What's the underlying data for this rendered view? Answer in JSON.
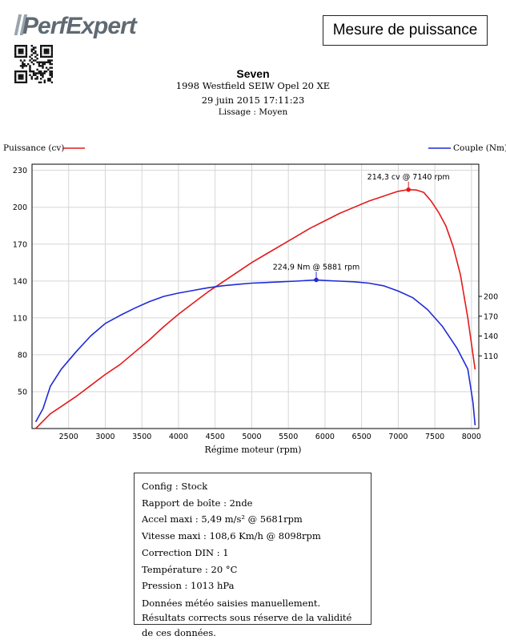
{
  "brand": {
    "logo_text": "PerfExpert"
  },
  "report": {
    "title": "Mesure de puissance",
    "name": "Seven",
    "vehicle": "1998 Westfield SEIW Opel 20 XE",
    "datetime": "29 juin 2015 17:11:23",
    "smoothing": "Lissage : Moyen"
  },
  "chart_data": {
    "type": "line",
    "xlabel": "Régime moteur (rpm)",
    "xlim": [
      2000,
      8100
    ],
    "xticks": [
      2500,
      3000,
      3500,
      4000,
      4500,
      5000,
      5500,
      6000,
      6500,
      7000,
      7500,
      8000
    ],
    "grid": true,
    "left_axis": {
      "label": "Puissance (cv)",
      "ylim": [
        20,
        235
      ],
      "yticks": [
        50,
        80,
        110,
        140,
        170,
        200,
        230
      ]
    },
    "right_axis": {
      "label": "Couple (Nm)",
      "ylim": [
        0,
        400
      ],
      "yticks": [
        110,
        140,
        170,
        200
      ]
    },
    "series": [
      {
        "name": "Puissance (cv)",
        "color": "#e31a1c",
        "axis": "left",
        "x": [
          2050,
          2150,
          2250,
          2400,
          2600,
          2800,
          3000,
          3200,
          3400,
          3600,
          3800,
          4000,
          4200,
          4400,
          4600,
          4800,
          5000,
          5200,
          5400,
          5600,
          5800,
          6000,
          6200,
          6400,
          6600,
          6800,
          6900,
          7000,
          7140,
          7250,
          7350,
          7450,
          7550,
          7650,
          7750,
          7850,
          7950,
          8050
        ],
        "y": [
          20,
          26,
          32,
          38,
          46,
          55,
          64,
          72,
          82,
          92,
          103,
          113,
          122,
          131,
          139,
          147,
          155,
          162,
          169,
          176,
          183,
          189,
          195,
          200,
          205,
          209,
          211,
          213,
          214.3,
          214,
          212,
          205,
          196,
          185,
          168,
          145,
          110,
          68
        ]
      },
      {
        "name": "Couple (Nm)",
        "color": "#1f2bd6",
        "axis": "right",
        "x": [
          2050,
          2150,
          2250,
          2400,
          2600,
          2800,
          3000,
          3200,
          3400,
          3600,
          3800,
          4000,
          4200,
          4400,
          4600,
          4800,
          5000,
          5200,
          5400,
          5600,
          5881,
          6000,
          6200,
          6400,
          6600,
          6800,
          7000,
          7200,
          7400,
          7600,
          7800,
          7950,
          8020,
          8050
        ],
        "y": [
          10,
          30,
          64,
          90,
          116,
          140,
          159,
          171,
          182,
          192,
          200,
          205,
          209,
          213,
          216,
          218,
          220,
          221,
          222,
          223,
          224.9,
          224,
          223,
          222,
          220,
          216,
          208,
          198,
          180,
          155,
          122,
          90,
          40,
          5
        ]
      }
    ],
    "annotations": [
      {
        "label": "214,3 cv @ 7140 rpm",
        "series": "Puissance (cv)",
        "x": 7140,
        "y": 214.3
      },
      {
        "label": "224,9 Nm @ 5881 rpm",
        "series": "Couple (Nm)",
        "x": 5881,
        "y": 224.9
      }
    ]
  },
  "info": {
    "config": "Config : Stock",
    "gear": "Rapport de boîte : 2nde",
    "accel": "Accel maxi : 5,49 m/s² @ 5681rpm",
    "speed": "Vitesse maxi : 108,6 Km/h @ 8098rpm",
    "din": "Correction DIN : 1",
    "temp": "Température : 20 °C",
    "pressure": "Pression : 1013 hPa",
    "note": "Données météo saisies manuellement. Résultats corrects sous réserve de la validité de ces données."
  }
}
